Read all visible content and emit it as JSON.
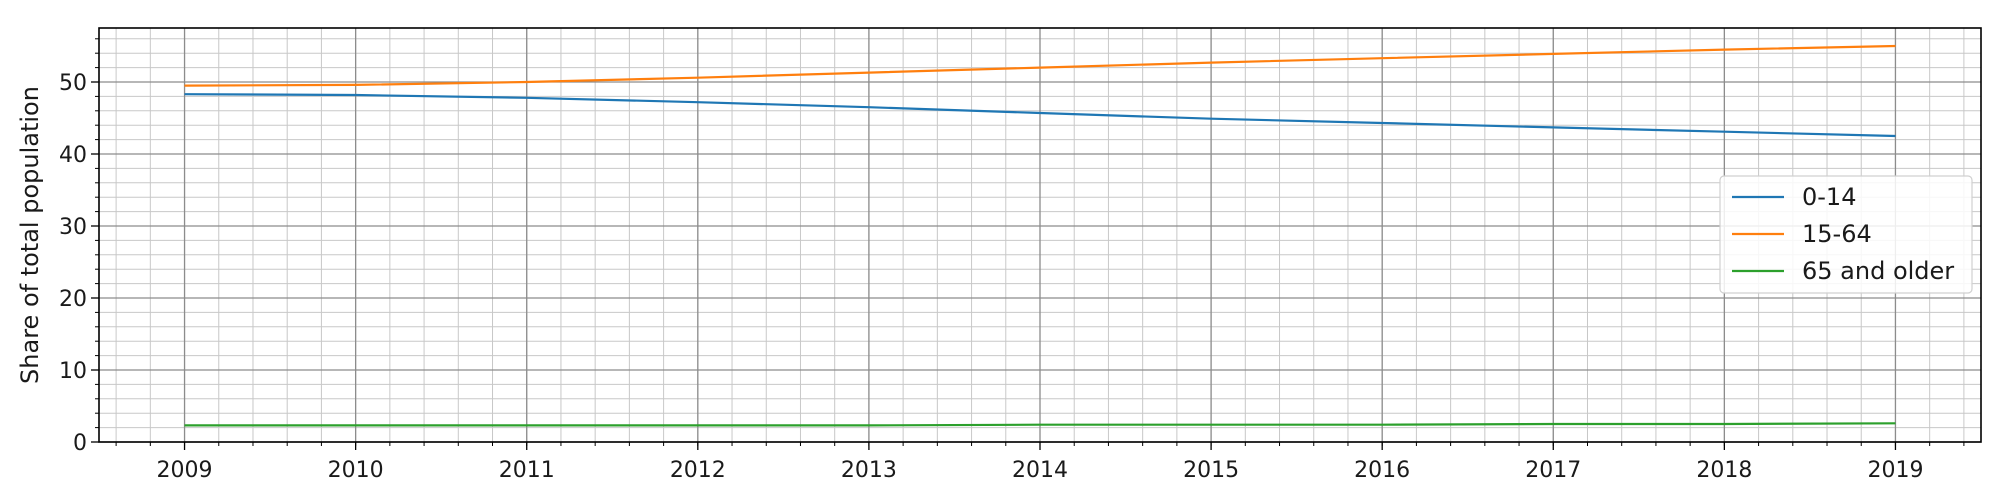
{
  "chart_data": {
    "type": "line",
    "title": "",
    "xlabel": "",
    "ylabel": "Share of total population",
    "xlim": [
      2008.5,
      2019.5
    ],
    "ylim": [
      0,
      57.5
    ],
    "x_ticks": [
      2009,
      2010,
      2011,
      2012,
      2013,
      2014,
      2015,
      2016,
      2017,
      2018,
      2019
    ],
    "y_ticks": [
      0,
      10,
      20,
      30,
      40,
      50
    ],
    "grid": true,
    "minor_grid": true,
    "legend_position": "center-right",
    "x": [
      2009,
      2010,
      2011,
      2012,
      2013,
      2014,
      2015,
      2016,
      2017,
      2018,
      2019
    ],
    "series": [
      {
        "name": "0-14",
        "color": "#1f77b4",
        "values": [
          48.3,
          48.2,
          47.8,
          47.2,
          46.5,
          45.7,
          44.9,
          44.3,
          43.7,
          43.1,
          42.5
        ]
      },
      {
        "name": "15-64",
        "color": "#ff7f0e",
        "values": [
          49.5,
          49.6,
          50.0,
          50.6,
          51.3,
          52.0,
          52.7,
          53.3,
          53.9,
          54.5,
          55.0
        ]
      },
      {
        "name": "65 and older",
        "color": "#2ca02c",
        "values": [
          2.3,
          2.3,
          2.3,
          2.3,
          2.3,
          2.4,
          2.4,
          2.4,
          2.5,
          2.5,
          2.6
        ]
      }
    ]
  }
}
